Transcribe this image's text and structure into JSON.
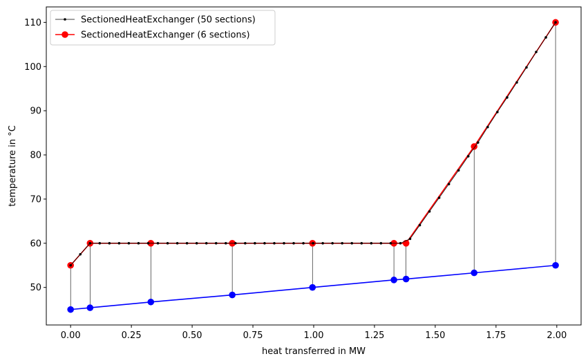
{
  "chart_data": {
    "type": "line",
    "xlabel": "heat transferred in MW",
    "ylabel": "temperature in °C",
    "xlim": [
      -0.1,
      2.1
    ],
    "ylim": [
      41.5,
      113.5
    ],
    "xticks": [
      0.0,
      0.25,
      0.5,
      0.75,
      1.0,
      1.25,
      1.5,
      1.75,
      2.0
    ],
    "xtick_labels": [
      "0.00",
      "0.25",
      "0.50",
      "0.75",
      "1.00",
      "1.25",
      "1.50",
      "1.75",
      "2.00"
    ],
    "yticks": [
      50,
      60,
      70,
      80,
      90,
      100,
      110
    ],
    "ytick_labels": [
      "50",
      "60",
      "70",
      "80",
      "90",
      "100",
      "110"
    ],
    "grid": false,
    "legend_position": "top-left",
    "legend": [
      {
        "label": "SectionedHeatExchanger (50 sections)",
        "color": "#000000",
        "marker": "small-dot"
      },
      {
        "label": "SectionedHeatExchanger (6 sections)",
        "color": "#ff0000",
        "marker": "circle"
      }
    ],
    "series": [
      {
        "name": "SectionedHeatExchanger (50 sections)",
        "color": "#000000",
        "marker": "small-dot",
        "x": [
          0.0,
          0.0399,
          0.0798,
          0.1197,
          0.1596,
          0.1995,
          0.2394,
          0.2793,
          0.3192,
          0.3591,
          0.399,
          0.4389,
          0.4788,
          0.5187,
          0.5586,
          0.5985,
          0.6384,
          0.6783,
          0.7182,
          0.7581,
          0.798,
          0.8379,
          0.8778,
          0.9177,
          0.9576,
          0.9975,
          1.0374,
          1.0773,
          1.1172,
          1.1571,
          1.197,
          1.2369,
          1.2768,
          1.3167,
          1.3566,
          1.3965,
          1.4364,
          1.4763,
          1.5162,
          1.5561,
          1.596,
          1.6359,
          1.6758,
          1.7157,
          1.7556,
          1.7955,
          1.8354,
          1.8753,
          1.9152,
          1.9551,
          1.995
        ],
        "y": [
          55.0,
          57.5,
          60.0,
          60.0,
          60.0,
          60.0,
          60.0,
          60.0,
          60.0,
          60.0,
          60.0,
          60.0,
          60.0,
          60.0,
          60.0,
          60.0,
          60.0,
          60.0,
          60.0,
          60.0,
          60.0,
          60.0,
          60.0,
          60.0,
          60.0,
          60.0,
          60.0,
          60.0,
          60.0,
          60.0,
          60.0,
          60.0,
          60.0,
          60.0,
          60.0,
          61.0,
          64.1,
          67.2,
          70.3,
          73.4,
          76.5,
          79.7,
          82.8,
          86.3,
          89.7,
          93.0,
          96.4,
          99.8,
          103.3,
          106.6,
          110.0
        ]
      },
      {
        "name": "SectionedHeatExchanger (6 sections)",
        "color": "#ff0000",
        "marker": "circle",
        "x": [
          0.0,
          0.08,
          0.33,
          0.665,
          0.995,
          1.33,
          1.38,
          1.66,
          1.995
        ],
        "y": [
          55.0,
          60.0,
          60.0,
          60.0,
          60.0,
          60.0,
          60.0,
          81.9,
          110.0
        ]
      },
      {
        "color": "#0000ff",
        "marker": "circle",
        "x": [
          0.0,
          0.08,
          0.33,
          0.665,
          0.995,
          1.33,
          1.38,
          1.66,
          1.995
        ],
        "y": [
          45.0,
          45.4,
          46.7,
          48.3,
          50.0,
          51.7,
          51.9,
          53.3,
          55.0
        ]
      }
    ]
  }
}
